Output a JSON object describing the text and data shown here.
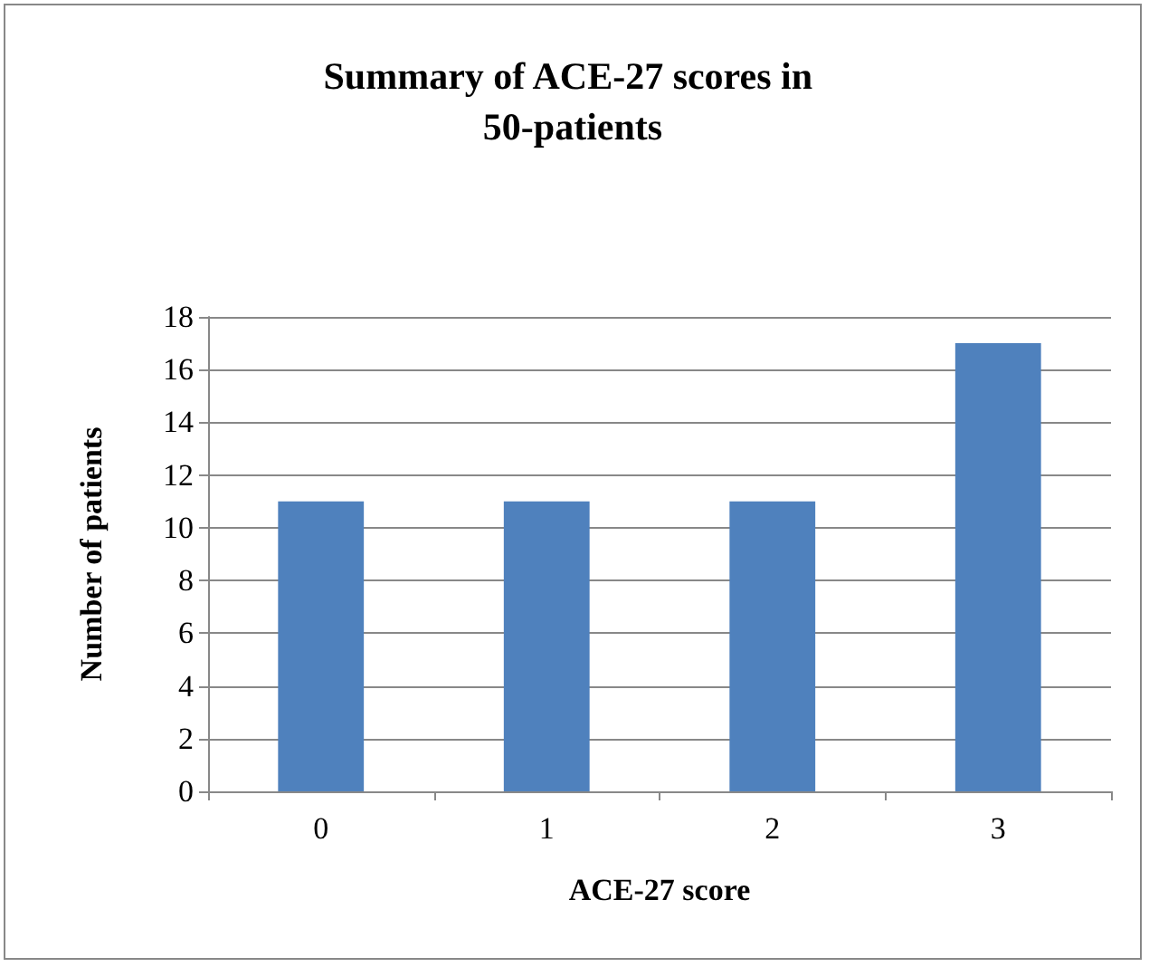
{
  "chart_data": {
    "type": "bar",
    "title": "Summary of ACE-27 scores in 50-patients",
    "xlabel": "ACE-27 score",
    "ylabel": "Number of patients",
    "categories": [
      "0",
      "1",
      "2",
      "3"
    ],
    "values": [
      11,
      11,
      11,
      17
    ],
    "color": "#4f81bd",
    "ylim": [
      0,
      18
    ],
    "yticks": [
      0,
      2,
      4,
      6,
      8,
      10,
      12,
      14,
      16,
      18
    ],
    "grid": "y"
  }
}
